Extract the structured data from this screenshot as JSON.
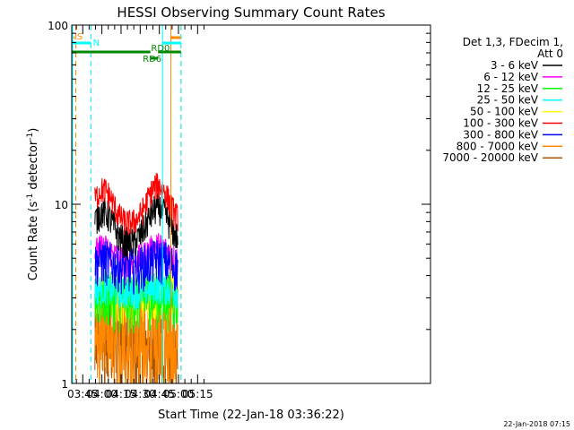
{
  "chart_data": {
    "type": "line",
    "title": "HESSI Observing Summary Count Rates",
    "xlabel": "Start Time (22-Jan-18 03:36:22)",
    "ylabel": "Count Rate (s",
    "ylabel_sup1": "-1",
    "ylabel_mid": " detector",
    "ylabel_sup2": "-1",
    "ylabel_end": ")",
    "yscale": "log",
    "ylim": [
      1,
      100
    ],
    "xlim_minutes": [
      36.37,
      317.5
    ],
    "x_ticks": [
      "03:45",
      "04:00",
      "04:15",
      "04:30",
      "04:45",
      "05:00",
      "05:15"
    ],
    "x_tick_minutes": [
      45,
      60,
      75,
      90,
      105,
      120,
      135
    ],
    "y_tick_labels": [
      "1",
      "10",
      "100"
    ],
    "y_tick_values": [
      1,
      10,
      100
    ],
    "legend_header": [
      "Det 1,3, FDecim 1,",
      "Att 0"
    ],
    "legend_position": "right",
    "footer_date": "22-Jan-2018 07:15",
    "data_start_minute": 54.5,
    "data_end_minute": 119.5,
    "series": [
      {
        "name": "3 - 6 keV",
        "color": "#000000",
        "base": 5.8,
        "peak": 3.0,
        "lo": 0.82,
        "hi": 1.25
      },
      {
        "name": "6 - 12 keV",
        "color": "#ff00ff",
        "base": 4.8,
        "peak": 0.9,
        "lo": 0.8,
        "hi": 1.2
      },
      {
        "name": "12 - 25 keV",
        "color": "#00ff00",
        "base": 3.1,
        "peak": 0.2,
        "lo": 0.6,
        "hi": 1.3
      },
      {
        "name": "25 - 50 keV",
        "color": "#00ffff",
        "base": 3.2,
        "peak": 0.2,
        "lo": 0.8,
        "hi": 1.2
      },
      {
        "name": "50 - 100 keV",
        "color": "#ffff00",
        "base": 3.0,
        "peak": 0.2,
        "lo": 0.7,
        "hi": 1.3
      },
      {
        "name": "100 - 300 keV",
        "color": "#ff0000",
        "base": 7.5,
        "peak": 4.2,
        "lo": 0.85,
        "hi": 1.22
      },
      {
        "name": "300 - 800 keV",
        "color": "#0000ff",
        "base": 4.3,
        "peak": 0.5,
        "lo": 0.72,
        "hi": 1.32
      },
      {
        "name": "800 - 7000 keV",
        "color": "#ff8800",
        "base": 2.7,
        "peak": 0.0,
        "lo": 0.3,
        "hi": 1.4
      },
      {
        "name": "7000 - 20000 keV",
        "color": "#aa5500",
        "base": 2.2,
        "peak": 0.0,
        "lo": 0.45,
        "hi": 1.35
      }
    ],
    "markers": [
      {
        "label": "S",
        "color": "#ff8800",
        "kind": "saa"
      },
      {
        "label": "N",
        "color": "#00ffff",
        "kind": "night"
      },
      {
        "label": "RD0",
        "color": "#008800",
        "kind": "decim"
      },
      {
        "label": "RD6",
        "color": "#008800",
        "kind": "decim"
      }
    ],
    "grid": false
  }
}
